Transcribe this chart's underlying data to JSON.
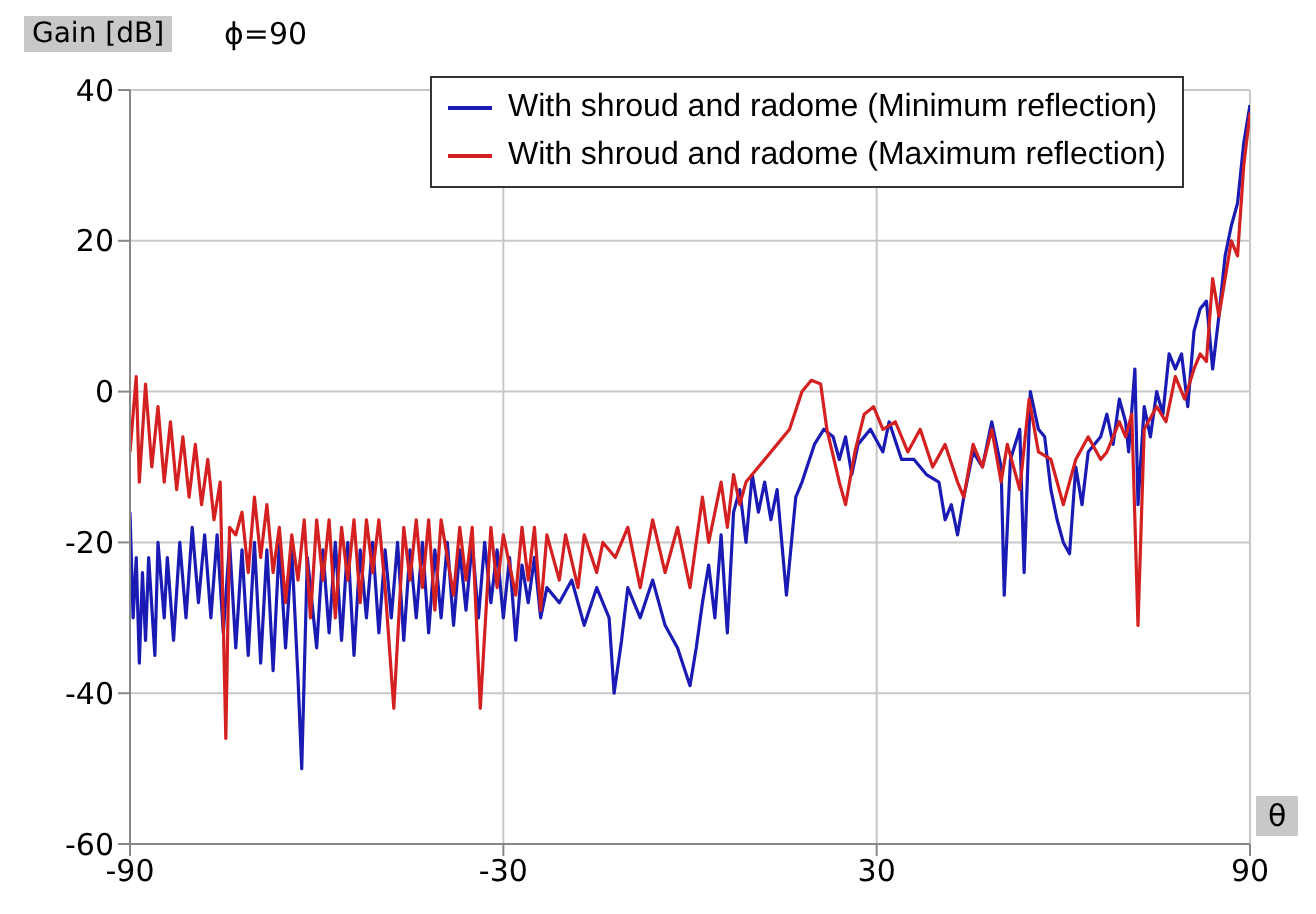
{
  "chart_data": {
    "type": "line",
    "title": "ϕ=90",
    "xlabel": "θ",
    "ylabel": "Gain [dB]",
    "xlim": [
      -90,
      90
    ],
    "xticks": [
      -90,
      -30,
      30,
      90
    ],
    "ylim": [
      -60,
      40
    ],
    "yticks": [
      -60,
      -40,
      -20,
      0,
      20,
      40
    ],
    "grid": true,
    "legend": "top right",
    "marker": "none",
    "line_style": "solid",
    "series": [
      {
        "name": "With shroud and radome (Minimum reflection)",
        "color": "#1a1ab4",
        "x": [
          -90,
          -89.5,
          -89,
          -88.5,
          -88,
          -87.5,
          -87,
          -86,
          -85.5,
          -84.5,
          -84,
          -83,
          -82,
          -81,
          -80,
          -79,
          -78,
          -77,
          -76,
          -75,
          -74,
          -73,
          -72,
          -71,
          -70,
          -69,
          -68,
          -67,
          -66,
          -65,
          -64,
          -63,
          -62.4,
          -61.5,
          -60,
          -59,
          -58,
          -57,
          -56,
          -55,
          -54,
          -53,
          -52,
          -51,
          -50,
          -49,
          -48,
          -47,
          -46,
          -45,
          -44,
          -43,
          -42,
          -41,
          -40,
          -39,
          -38,
          -37,
          -36,
          -35,
          -34,
          -33,
          -32,
          -31,
          -30,
          -29,
          -28,
          -27,
          -26,
          -25,
          -24,
          -23,
          -21,
          -19,
          -17,
          -15,
          -13,
          -12.2,
          -11,
          -10,
          -8,
          -6,
          -4,
          -2,
          0,
          1,
          2,
          3,
          4,
          5,
          6,
          7,
          8,
          9,
          10,
          11,
          12,
          13,
          14,
          15.5,
          17,
          18,
          20,
          21.5,
          23,
          24,
          25,
          26,
          27,
          29,
          31,
          32,
          34,
          36,
          38,
          40,
          41,
          42,
          43,
          44,
          45.5,
          47,
          48.5,
          50,
          50.5,
          51.5,
          53,
          53.7,
          54.7,
          56,
          57,
          58,
          59,
          60,
          61,
          62,
          63,
          64,
          66,
          67,
          68,
          69,
          70,
          70.5,
          71.5,
          72,
          73,
          74,
          75,
          76,
          77,
          78,
          79,
          80,
          81,
          82,
          83,
          84,
          85,
          86,
          87,
          88,
          89,
          90
        ],
        "values": [
          -16,
          -30,
          -22,
          -36,
          -24,
          -33,
          -22,
          -35,
          -20,
          -30,
          -22,
          -33,
          -20,
          -30,
          -18,
          -28,
          -19,
          -30,
          -19,
          -32,
          -20,
          -34,
          -21,
          -35,
          -20,
          -36,
          -21,
          -37,
          -20,
          -34,
          -21,
          -38,
          -50,
          -22,
          -34,
          -21,
          -32,
          -20,
          -33,
          -20,
          -35,
          -21,
          -30,
          -20,
          -32,
          -21,
          -30,
          -20,
          -33,
          -21,
          -30,
          -20,
          -32,
          -21,
          -30,
          -20,
          -31,
          -21,
          -29,
          -20,
          -30,
          -20,
          -28,
          -21,
          -30,
          -22,
          -33,
          -23,
          -28,
          -22,
          -30,
          -26,
          -28,
          -25,
          -31,
          -26,
          -30,
          -40,
          -33,
          -26,
          -30,
          -25,
          -31,
          -34,
          -39,
          -34,
          -28,
          -23,
          -30,
          -19,
          -32,
          -16,
          -13,
          -20,
          -11,
          -16,
          -12,
          -17,
          -13,
          -27,
          -14,
          -12,
          -7,
          -5,
          -6,
          -9,
          -6,
          -11,
          -7,
          -5,
          -8,
          -4,
          -9,
          -9,
          -11,
          -12,
          -17,
          -15,
          -19,
          -14,
          -8,
          -10,
          -4,
          -10,
          -27,
          -9,
          -5,
          -24,
          0,
          -5,
          -6,
          -13,
          -17,
          -20,
          -21.5,
          -10,
          -15,
          -8,
          -6,
          -3,
          -7,
          -1,
          -4,
          -8,
          3,
          -15,
          -2,
          -6,
          0,
          -3,
          5,
          3,
          5,
          -2,
          8,
          11,
          12,
          3,
          10,
          18,
          22,
          25,
          33,
          38
        ]
      },
      {
        "name": "With shroud and radome (Maximum reflection)",
        "color": "#d42020",
        "x": [
          -90,
          -89,
          -88.5,
          -87.5,
          -86.5,
          -85.5,
          -84.5,
          -83.5,
          -82.5,
          -81.5,
          -80.5,
          -79.5,
          -78.5,
          -77.5,
          -76.5,
          -75.5,
          -74.6,
          -74,
          -73,
          -72,
          -71,
          -70,
          -69,
          -68,
          -67,
          -66,
          -65,
          -64,
          -63,
          -62,
          -61,
          -60,
          -59,
          -58,
          -57,
          -56,
          -55,
          -54,
          -53,
          -52,
          -51,
          -50,
          -49,
          -47.6,
          -46,
          -45,
          -44,
          -43,
          -42,
          -41,
          -40,
          -38,
          -37,
          -36,
          -35,
          -33.7,
          -32,
          -31,
          -30,
          -28,
          -27,
          -26,
          -25,
          -24,
          -23,
          -21,
          -20,
          -18,
          -17,
          -15,
          -14,
          -12,
          -10,
          -8,
          -6,
          -4,
          -2,
          0,
          2,
          3,
          5,
          6,
          7,
          8,
          9,
          11,
          14,
          16,
          18,
          19.5,
          21,
          22,
          24,
          25,
          26.5,
          28,
          29.5,
          31,
          33,
          35,
          37,
          39,
          41,
          43,
          44,
          45.5,
          47,
          48.5,
          50,
          51,
          53,
          54.5,
          56,
          58,
          60,
          62,
          64,
          66,
          67,
          69,
          70,
          71,
          72,
          73,
          75,
          76.5,
          78,
          79.5,
          81,
          82,
          83,
          84,
          85,
          86,
          87,
          88,
          89,
          90
        ],
        "values": [
          -8,
          2,
          -12,
          1,
          -10,
          -2,
          -12,
          -4,
          -13,
          -6,
          -14,
          -7,
          -15,
          -9,
          -17,
          -12,
          -46,
          -18,
          -19,
          -16,
          -24,
          -14,
          -22,
          -15,
          -24,
          -18,
          -28,
          -19,
          -25,
          -17,
          -30,
          -17,
          -25,
          -17,
          -30,
          -18,
          -25,
          -17,
          -28,
          -17,
          -24,
          -17,
          -26,
          -42,
          -18,
          -25,
          -17,
          -26,
          -17,
          -29,
          -17,
          -27,
          -18,
          -25,
          -18,
          -42,
          -18,
          -26,
          -19,
          -27,
          -18,
          -25,
          -18,
          -29,
          -19,
          -25,
          -19,
          -26,
          -19,
          -24,
          -20,
          -22,
          -18,
          -26,
          -17,
          -24,
          -18,
          -26,
          -14,
          -20,
          -12,
          -18,
          -11,
          -15,
          -12,
          -10,
          -7,
          -5,
          0,
          1.5,
          1,
          -5,
          -12,
          -15,
          -8,
          -3,
          -2,
          -5,
          -4,
          -8,
          -5,
          -10,
          -7,
          -12,
          -14,
          -7,
          -10,
          -5,
          -12,
          -7,
          -13,
          -1,
          -8,
          -9,
          -15,
          -9,
          -6,
          -9,
          -8,
          -4,
          -6,
          -3,
          -31,
          -5,
          -2,
          -4,
          2,
          -1,
          3,
          5,
          4,
          15,
          10,
          15,
          20,
          18,
          30,
          37
        ]
      }
    ]
  }
}
